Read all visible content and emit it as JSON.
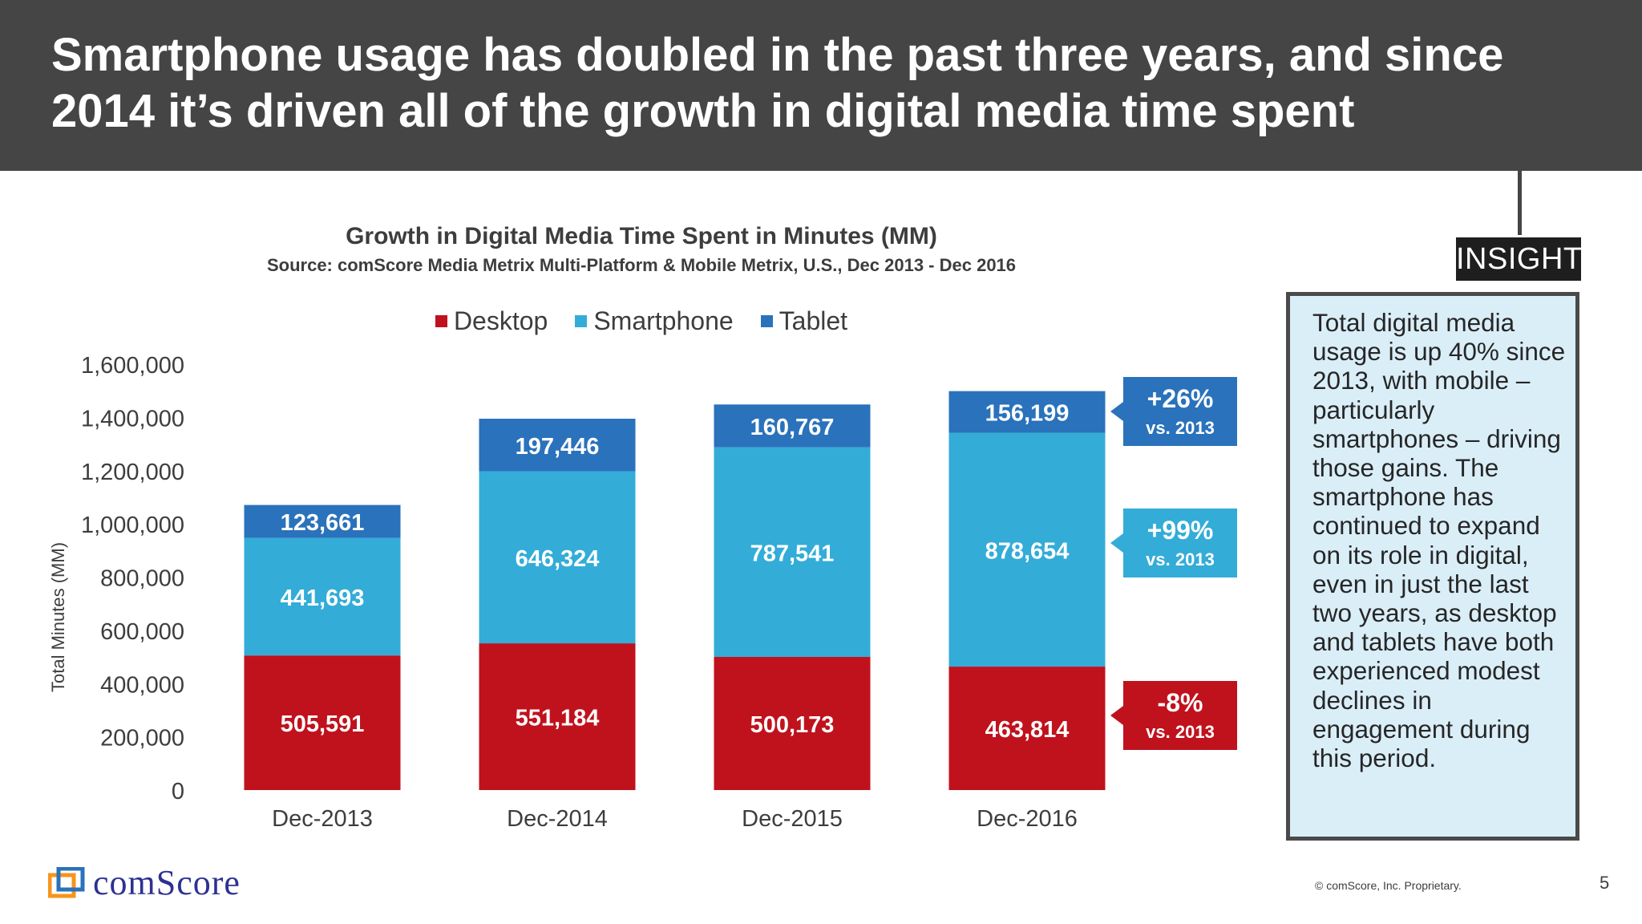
{
  "header": {
    "title": "Smartphone usage has doubled in the past three years, and since 2014 it’s driven all of the growth in digital media time spent"
  },
  "colors": {
    "desktop": "#c0121d",
    "smartphone": "#33acd8",
    "tablet": "#2a72bb",
    "header_bg": "#454545"
  },
  "chart_data": {
    "type": "bar",
    "stacked": true,
    "title": "Growth in Digital Media Time Spent in Minutes (MM)",
    "subtitle": "Source: comScore Media Metrix Multi-Platform & Mobile Metrix, U.S., Dec 2013 - Dec 2016",
    "categories": [
      "Dec-2013",
      "Dec-2014",
      "Dec-2015",
      "Dec-2016"
    ],
    "series": [
      {
        "name": "Desktop",
        "values": [
          505591,
          551184,
          500173,
          463814
        ],
        "labels": [
          "505,591",
          "551,184",
          "500,173",
          "463,814"
        ]
      },
      {
        "name": "Smartphone",
        "values": [
          441693,
          646324,
          787541,
          878654
        ],
        "labels": [
          "441,693",
          "646,324",
          "787,541",
          "878,654"
        ]
      },
      {
        "name": "Tablet",
        "values": [
          123661,
          197446,
          160767,
          156199
        ],
        "labels": [
          "123,661",
          "197,446",
          "160,767",
          "156,199"
        ]
      }
    ],
    "xlabel": "",
    "ylabel": "Total Minutes (MM)",
    "ylim": [
      0,
      1600000
    ],
    "yticks": [
      0,
      200000,
      400000,
      600000,
      800000,
      1000000,
      1200000,
      1400000,
      1600000
    ],
    "ytick_labels": [
      "0",
      "200,000",
      "400,000",
      "600,000",
      "800,000",
      "1,000,000",
      "1,200,000",
      "1,400,000",
      "1,600,000"
    ],
    "legend_position": "top",
    "grid": false,
    "callouts": [
      {
        "series": "Tablet",
        "change": "+26%",
        "sub": "vs. 2013"
      },
      {
        "series": "Smartphone",
        "change": "+99%",
        "sub": "vs. 2013"
      },
      {
        "series": "Desktop",
        "change": "-8%",
        "sub": "vs. 2013"
      }
    ]
  },
  "insight": {
    "tag": "INSIGHT",
    "text": "Total digital media usage is up 40% since 2013, with mobile – particularly smartphones – driving those gains. The smartphone has continued to expand on its role in digital, even in just the last two years, as desktop and tablets have both experienced modest declines in engagement during this period."
  },
  "footer": {
    "logo": "comScore",
    "copyright": "© comScore, Inc. Proprietary.",
    "page": "5"
  }
}
